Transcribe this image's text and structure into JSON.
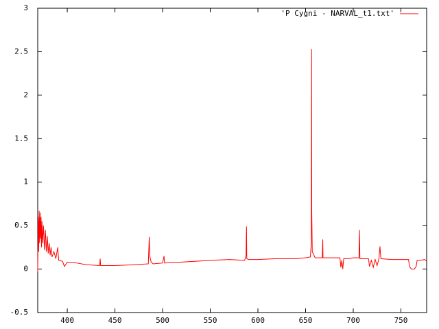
{
  "chart_data": {
    "type": "line",
    "x": [
      369,
      369.5,
      370,
      370.5,
      371,
      371.5,
      372,
      372.5,
      373,
      373.5,
      374,
      375,
      376,
      377,
      378,
      379,
      380,
      381,
      382,
      383,
      384,
      386,
      388,
      390,
      391,
      395,
      397,
      400,
      410,
      420,
      434,
      434.5,
      435,
      450,
      470,
      485,
      486,
      486.5,
      488,
      490,
      500,
      501.5,
      502,
      520,
      550,
      570,
      586,
      587.5,
      588,
      588.3,
      590,
      600,
      620,
      640,
      650,
      655,
      656,
      656.3,
      656.5,
      657,
      660,
      667.5,
      668,
      668.3,
      680,
      686,
      687,
      688,
      689,
      690,
      695,
      700,
      706,
      706.5,
      707,
      716,
      717,
      719,
      721,
      723,
      725,
      727,
      728,
      729,
      740,
      758,
      759,
      761,
      764,
      766,
      767,
      770,
      775,
      777
    ],
    "series": [
      {
        "name": "'P Cygni - NARVAL_t1.txt'",
        "color": "#ff0000",
        "values": [
          -0.03,
          0.6,
          0.2,
          0.67,
          0.3,
          0.65,
          0.35,
          0.6,
          0.25,
          0.55,
          0.3,
          0.5,
          0.22,
          0.45,
          0.2,
          0.38,
          0.18,
          0.3,
          0.16,
          0.25,
          0.14,
          0.2,
          0.12,
          0.25,
          0.1,
          0.09,
          0.03,
          0.08,
          0.07,
          0.05,
          0.04,
          0.12,
          0.04,
          0.04,
          0.05,
          0.06,
          0.37,
          0.15,
          0.08,
          0.06,
          0.07,
          0.15,
          0.07,
          0.08,
          0.1,
          0.11,
          0.1,
          0.15,
          0.49,
          0.12,
          0.11,
          0.11,
          0.12,
          0.12,
          0.13,
          0.14,
          0.3,
          2.53,
          0.65,
          0.2,
          0.13,
          0.13,
          0.34,
          0.13,
          0.13,
          0.13,
          0.02,
          0.1,
          0.0,
          0.12,
          0.12,
          0.13,
          0.13,
          0.45,
          0.12,
          0.12,
          0.03,
          0.1,
          0.02,
          0.11,
          0.04,
          0.12,
          0.26,
          0.12,
          0.11,
          0.11,
          0.03,
          0.0,
          0.0,
          0.03,
          0.1,
          0.1,
          0.11,
          0.09
        ]
      }
    ],
    "xlim": [
      369,
      777
    ],
    "xticks": [
      400,
      450,
      500,
      550,
      600,
      650,
      700,
      750
    ],
    "ylim": [
      -0.5,
      3
    ],
    "yticks": [
      -0.5,
      0,
      0.5,
      1,
      1.5,
      2,
      2.5,
      3
    ],
    "legend": "top-right"
  }
}
